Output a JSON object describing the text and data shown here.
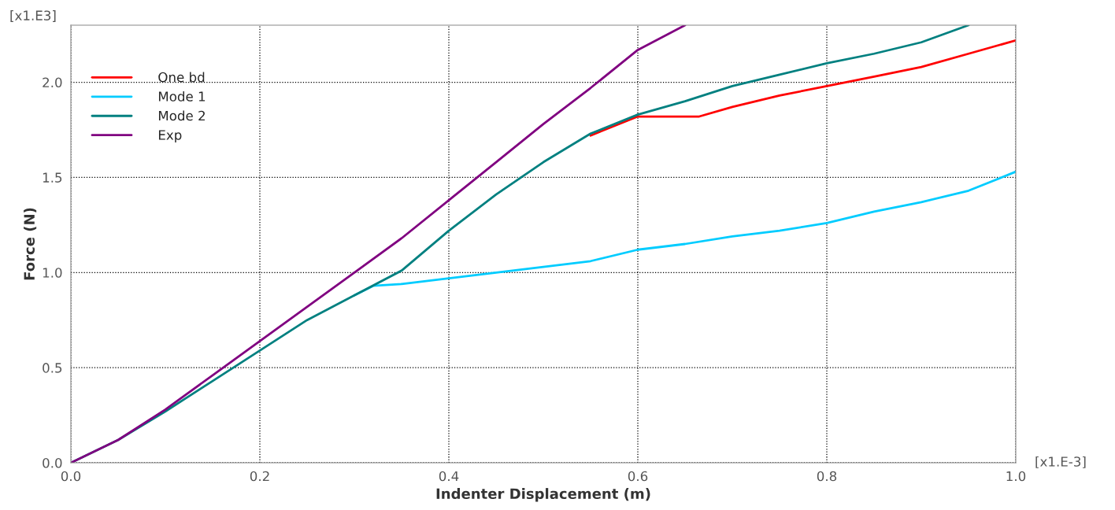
{
  "chart_data": {
    "type": "line",
    "xlabel": "Indenter Displacement (m)",
    "ylabel": "Force (N)",
    "annotations": [
      "[x1.E3]",
      "[x1.E-3]"
    ],
    "xlim": [
      0,
      1.0
    ],
    "ylim": [
      0,
      2.3
    ],
    "xticks": [
      {
        "value": 0,
        "label": "0.0"
      },
      {
        "value": 0.2,
        "label": "0.2"
      },
      {
        "value": 0.4,
        "label": "0.4"
      },
      {
        "value": 0.6,
        "label": "0.6"
      },
      {
        "value": 0.8,
        "label": "0.8"
      },
      {
        "value": 1.0,
        "label": "1.0"
      }
    ],
    "yticks": [
      {
        "value": 0,
        "label": "0.0"
      },
      {
        "value": 0.5,
        "label": "0.5"
      },
      {
        "value": 1.0,
        "label": "1.0"
      },
      {
        "value": 1.5,
        "label": "1.5"
      },
      {
        "value": 2.0,
        "label": "2.0"
      }
    ],
    "grid": true,
    "legend": "top left",
    "marker": "none",
    "line_style": "solid",
    "series": [
      {
        "name": "One bd",
        "color": "#ff0000",
        "x": [
          0.55,
          0.6,
          0.665,
          0.7,
          0.75,
          0.8,
          0.85,
          0.9,
          0.95,
          1.0
        ],
        "values": [
          1.72,
          1.82,
          1.82,
          1.87,
          1.93,
          1.98,
          2.03,
          2.08,
          2.15,
          2.22
        ]
      },
      {
        "name": "Mode 1",
        "color": "#00ccff",
        "x": [
          0.3,
          0.32,
          0.35,
          0.4,
          0.45,
          0.5,
          0.55,
          0.6,
          0.65,
          0.7,
          0.75,
          0.8,
          0.85,
          0.9,
          0.95,
          1.0
        ],
        "values": [
          0.88,
          0.93,
          0.94,
          0.97,
          1.0,
          1.03,
          1.06,
          1.12,
          1.15,
          1.19,
          1.22,
          1.26,
          1.32,
          1.37,
          1.43,
          1.53
        ]
      },
      {
        "name": "Mode 2",
        "color": "#008080",
        "x": [
          0,
          0.05,
          0.1,
          0.15,
          0.2,
          0.25,
          0.3,
          0.35,
          0.4,
          0.45,
          0.5,
          0.55,
          0.6,
          0.65,
          0.7,
          0.75,
          0.8,
          0.85,
          0.9,
          0.95
        ],
        "values": [
          0,
          0.12,
          0.27,
          0.43,
          0.59,
          0.75,
          0.88,
          1.01,
          1.22,
          1.41,
          1.58,
          1.73,
          1.83,
          1.9,
          1.98,
          2.04,
          2.1,
          2.15,
          2.21,
          2.3
        ]
      },
      {
        "name": "Exp",
        "color": "#800080",
        "x": [
          0,
          0.05,
          0.1,
          0.15,
          0.2,
          0.25,
          0.3,
          0.35,
          0.4,
          0.45,
          0.5,
          0.55,
          0.6,
          0.65
        ],
        "values": [
          0,
          0.12,
          0.28,
          0.46,
          0.64,
          0.82,
          1.0,
          1.18,
          1.38,
          1.58,
          1.78,
          1.97,
          2.17,
          2.3
        ]
      }
    ]
  }
}
